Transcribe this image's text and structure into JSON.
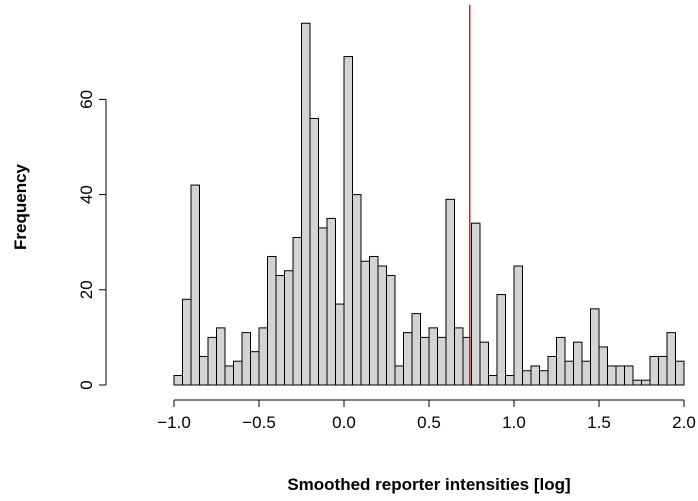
{
  "chart_data": {
    "type": "bar",
    "subtype": "histogram",
    "title": "",
    "xlabel": "Smoothed reporter intensities [log]",
    "ylabel": "Frequency",
    "bin_width": 0.05,
    "bin_start": -1.0,
    "bin_end": 2.0,
    "xlim": [
      -1.0,
      2.0
    ],
    "ylim": [
      0,
      76
    ],
    "x_ticks": [
      -1.0,
      -0.5,
      0.0,
      0.5,
      1.0,
      1.5,
      2.0
    ],
    "x_tick_labels": [
      "−1.0",
      "−0.5",
      "0.0",
      "0.5",
      "1.0",
      "1.5",
      "2.0"
    ],
    "y_ticks": [
      0,
      20,
      40,
      60
    ],
    "y_tick_labels": [
      "0",
      "20",
      "40",
      "60"
    ],
    "values": [
      2,
      18,
      42,
      6,
      10,
      12,
      4,
      5,
      11,
      7,
      12,
      27,
      23,
      24,
      31,
      76,
      56,
      33,
      35,
      17,
      69,
      40,
      26,
      27,
      25,
      23,
      4,
      11,
      15,
      10,
      12,
      10,
      39,
      12,
      10,
      34,
      9,
      2,
      19,
      2,
      25,
      3,
      4,
      3,
      6,
      10,
      5,
      9,
      5,
      16,
      8,
      4,
      4,
      4,
      1,
      1,
      6,
      6,
      11,
      5
    ],
    "bar_color": "#d3d3d3",
    "bar_border_color": "#000000",
    "reference_line": {
      "x": 0.74,
      "color": "#cc0000"
    },
    "grid": false,
    "legend": "none"
  }
}
